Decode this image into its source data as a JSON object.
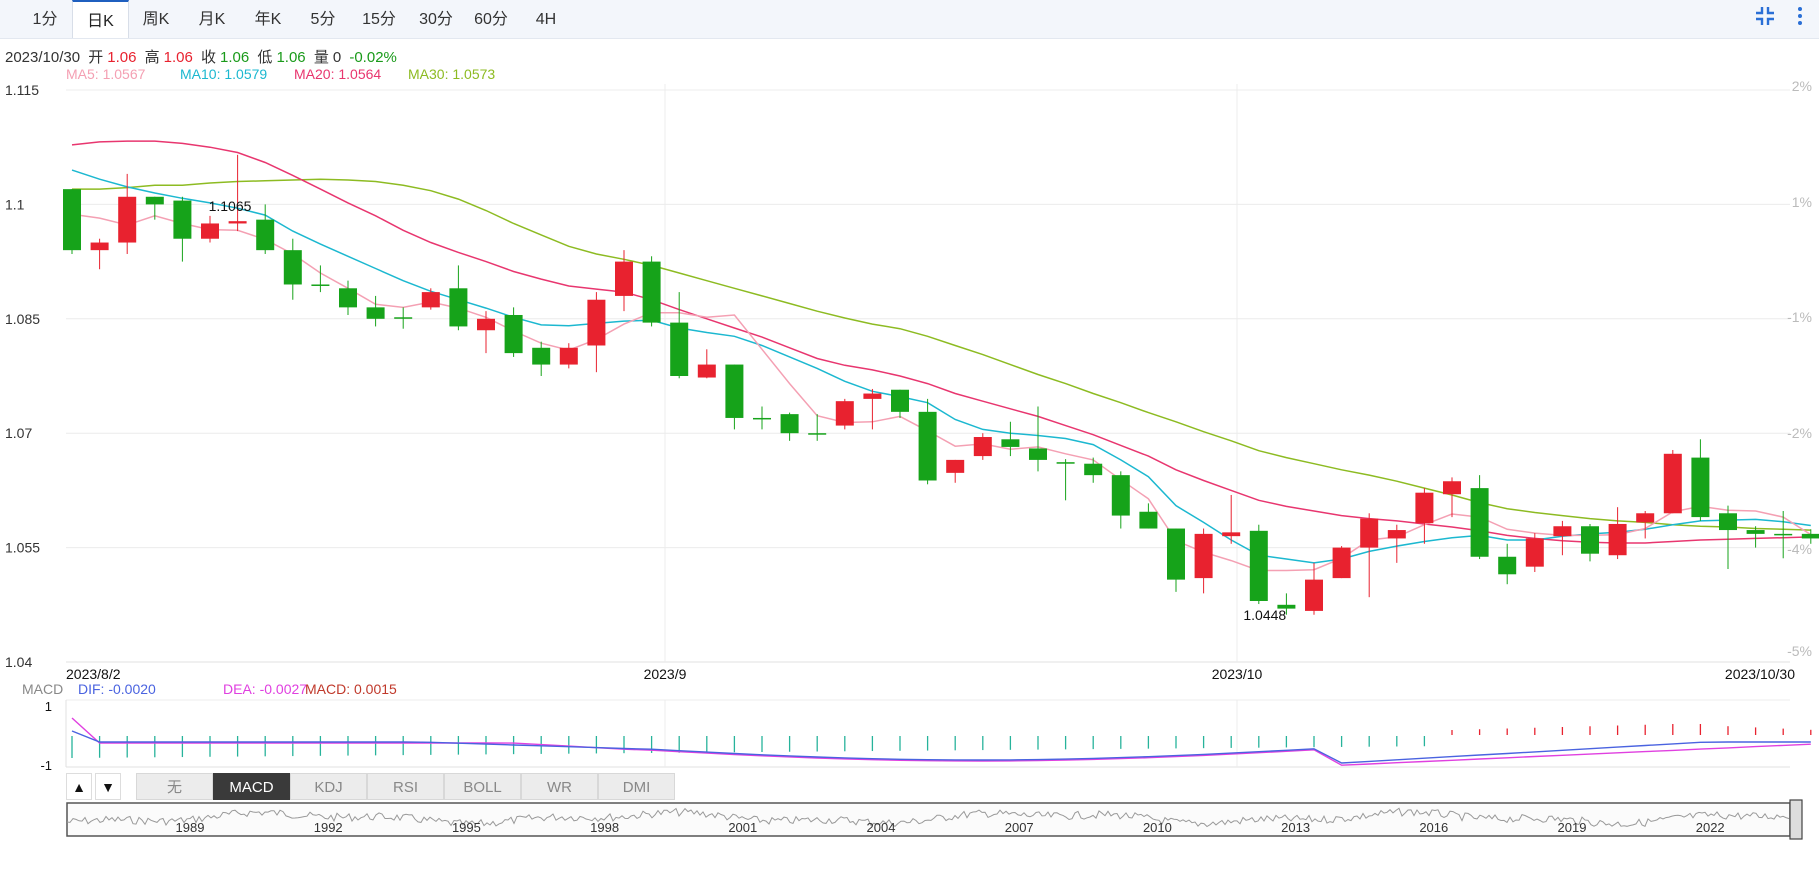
{
  "tabs": [
    "1分",
    "日K",
    "周K",
    "月K",
    "年K",
    "5分",
    "15分",
    "30分",
    "60分",
    "4H"
  ],
  "active_tab": "日K",
  "info": {
    "date": "2023/10/30",
    "open_label": "开",
    "open": "1.06",
    "high_label": "高",
    "high": "1.06",
    "close_label": "收",
    "close": "1.06",
    "low_label": "低",
    "low": "1.06",
    "vol_label": "量",
    "vol": "0",
    "change": "-0.02%"
  },
  "ma_legend": [
    {
      "text": "MA5: 1.0567",
      "color": "#f4a0b3"
    },
    {
      "text": "MA10: 1.0579",
      "color": "#1cb8d0"
    },
    {
      "text": "MA20: 1.0564",
      "color": "#e8366f"
    },
    {
      "text": "MA30: 1.0573",
      "color": "#8dbb22"
    }
  ],
  "chart_data": {
    "type": "candlestick",
    "y_ticks": [
      "1.115",
      "1.1",
      "1.085",
      "1.07",
      "1.055",
      "1.04"
    ],
    "y_right_ticks": [
      "2%",
      "1%",
      "-1%",
      "-2%",
      "-4%",
      "-5%"
    ],
    "ylim": [
      1.04,
      1.115
    ],
    "x_ticks": [
      "2023/8/2",
      "2023/9",
      "2023/10",
      "2023/10/30"
    ],
    "annotations": [
      {
        "text": "1.1065",
        "candle": 5
      },
      {
        "text": "1.0448",
        "candle": 43
      }
    ],
    "candles": [
      [
        1.102,
        1.094,
        1.102,
        1.0935
      ],
      [
        1.094,
        1.095,
        1.0955,
        1.0915
      ],
      [
        1.095,
        1.101,
        1.104,
        1.0935
      ],
      [
        1.101,
        1.1,
        1.101,
        1.098
      ],
      [
        1.1005,
        1.0955,
        1.101,
        1.0925
      ],
      [
        1.0955,
        1.0975,
        1.0985,
        1.095
      ],
      [
        1.0975,
        1.0978,
        1.1065,
        1.0965
      ],
      [
        1.098,
        1.094,
        1.1,
        1.0935
      ],
      [
        1.094,
        1.0895,
        1.0955,
        1.0875
      ],
      [
        1.0895,
        1.0895,
        1.092,
        1.0885
      ],
      [
        1.089,
        1.0865,
        1.09,
        1.0855
      ],
      [
        1.0865,
        1.085,
        1.088,
        1.084
      ],
      [
        1.0852,
        1.0852,
        1.0865,
        1.0837
      ],
      [
        1.0865,
        1.0885,
        1.089,
        1.0862
      ],
      [
        1.089,
        1.084,
        1.092,
        1.0835
      ],
      [
        1.0835,
        1.085,
        1.086,
        1.0805
      ],
      [
        1.0855,
        1.0805,
        1.0865,
        1.08
      ],
      [
        1.0812,
        1.079,
        1.082,
        1.0775
      ],
      [
        1.079,
        1.0812,
        1.0818,
        1.0785
      ],
      [
        1.0815,
        1.0875,
        1.0885,
        1.078
      ],
      [
        1.088,
        1.0925,
        1.094,
        1.086
      ],
      [
        1.0925,
        1.0845,
        1.0932,
        1.084
      ],
      [
        1.0845,
        1.0775,
        1.0885,
        1.0772
      ],
      [
        1.0773,
        1.079,
        1.081,
        1.0772
      ],
      [
        1.079,
        1.072,
        1.079,
        1.0705
      ],
      [
        1.072,
        1.072,
        1.0735,
        1.0705
      ],
      [
        1.0725,
        1.07,
        1.0727,
        1.069
      ],
      [
        1.07,
        1.07,
        1.0725,
        1.069
      ],
      [
        1.071,
        1.0742,
        1.0745,
        1.0705
      ],
      [
        1.0745,
        1.0752,
        1.0758,
        1.0705
      ],
      [
        1.0757,
        1.0728,
        1.0757,
        1.072
      ],
      [
        1.0728,
        1.0638,
        1.0745,
        1.0633
      ],
      [
        1.0648,
        1.0665,
        1.0665,
        1.0635
      ],
      [
        1.067,
        1.0695,
        1.07,
        1.0665
      ],
      [
        1.0692,
        1.0682,
        1.0715,
        1.067
      ],
      [
        1.068,
        1.0665,
        1.0735,
        1.065
      ],
      [
        1.0662,
        1.066,
        1.0666,
        1.0612
      ],
      [
        1.066,
        1.0645,
        1.0668,
        1.0635
      ],
      [
        1.0645,
        1.0592,
        1.065,
        1.0575
      ],
      [
        1.0597,
        1.0575,
        1.0608,
        1.0575
      ],
      [
        1.0575,
        1.0508,
        1.0575,
        1.0492
      ],
      [
        1.051,
        1.0568,
        1.0575,
        1.049
      ],
      [
        1.0565,
        1.057,
        1.0619,
        1.0555
      ],
      [
        1.0572,
        1.048,
        1.058,
        1.0476
      ],
      [
        1.0475,
        1.047,
        1.049,
        1.0462
      ],
      [
        1.0467,
        1.0508,
        1.053,
        1.0462
      ],
      [
        1.051,
        1.055,
        1.0552,
        1.051
      ],
      [
        1.055,
        1.0588,
        1.0595,
        1.0485
      ],
      [
        1.0562,
        1.0573,
        1.058,
        1.053
      ],
      [
        1.0582,
        1.0622,
        1.0628,
        1.0555
      ],
      [
        1.062,
        1.0637,
        1.0642,
        1.059
      ],
      [
        1.0628,
        1.0538,
        1.0645,
        1.0535
      ],
      [
        1.0538,
        1.0515,
        1.0555,
        1.0502
      ],
      [
        1.0525,
        1.0562,
        1.0569,
        1.0518
      ],
      [
        1.0565,
        1.0578,
        1.0585,
        1.054
      ],
      [
        1.0578,
        1.0542,
        1.0581,
        1.0532
      ],
      [
        1.054,
        1.0581,
        1.0603,
        1.0535
      ],
      [
        1.0583,
        1.0595,
        1.0598,
        1.0562
      ],
      [
        1.0595,
        1.0673,
        1.0678,
        1.0595
      ],
      [
        1.0668,
        1.059,
        1.0692,
        1.0585
      ],
      [
        1.0595,
        1.0573,
        1.0605,
        1.0522
      ],
      [
        1.0573,
        1.0568,
        1.0578,
        1.055
      ],
      [
        1.0568,
        1.0568,
        1.0598,
        1.0536
      ],
      [
        1.0568,
        1.0562,
        1.0574,
        1.0555
      ]
    ],
    "ma": {
      "MA5": [
        1.0987,
        1.0982,
        1.0973,
        1.0985,
        1.0975,
        1.0967,
        1.0966,
        1.0954,
        1.0935,
        1.091,
        1.089,
        1.0869,
        1.0865,
        1.0872,
        1.0864,
        1.0852,
        1.0834,
        1.0818,
        1.0809,
        1.0823,
        1.0843,
        1.0858,
        1.0858,
        1.0852,
        1.0855,
        1.081,
        1.0765,
        1.0723,
        1.0714,
        1.0715,
        1.0722,
        1.0703,
        1.0683,
        1.0686,
        1.0679,
        1.0682,
        1.0673,
        1.0665,
        1.0639,
        1.0614,
        1.0559,
        1.0544,
        1.0533,
        1.052,
        1.052,
        1.0521,
        1.0536,
        1.056,
        1.0564,
        1.058,
        1.0594,
        1.059,
        1.0574,
        1.0569,
        1.0566,
        1.0566,
        1.0567,
        1.0575,
        1.0597,
        1.0604,
        1.0599,
        1.0598,
        1.059,
        1.0567
      ],
      "MA10": [
        1.1045,
        1.1033,
        1.1023,
        1.1015,
        1.1008,
        1.1002,
        1.0995,
        1.0986,
        1.0965,
        1.0948,
        1.0932,
        1.0916,
        1.09,
        1.0886,
        1.0875,
        1.0864,
        1.0852,
        1.0842,
        1.0841,
        1.0844,
        1.0847,
        1.0848,
        1.0838,
        1.0832,
        1.0827,
        1.0815,
        1.08,
        1.0785,
        1.0768,
        1.0755,
        1.0748,
        1.074,
        1.0718,
        1.0705,
        1.07,
        1.0697,
        1.0693,
        1.0685,
        1.0665,
        1.0643,
        1.0605,
        1.0583,
        1.056,
        1.054,
        1.0535,
        1.053,
        1.0535,
        1.0545,
        1.0552,
        1.0558,
        1.0563,
        1.0566,
        1.056,
        1.056,
        1.0565,
        1.0568,
        1.057,
        1.0574,
        1.058,
        1.0585,
        1.0586,
        1.0587,
        1.0584,
        1.0579
      ],
      "MA20": [
        1.1078,
        1.1082,
        1.1083,
        1.1083,
        1.108,
        1.1075,
        1.1068,
        1.1055,
        1.1038,
        1.102,
        1.1002,
        1.0985,
        1.0966,
        1.095,
        1.0937,
        1.0925,
        1.0912,
        1.0902,
        1.0893,
        1.0889,
        1.0885,
        1.0875,
        1.0862,
        1.085,
        1.0838,
        1.0826,
        1.0812,
        1.0798,
        1.0789,
        1.0783,
        1.0775,
        1.0765,
        1.0752,
        1.0742,
        1.0732,
        1.0722,
        1.071,
        1.0698,
        1.0684,
        1.067,
        1.0652,
        1.0638,
        1.0625,
        1.0612,
        1.0604,
        1.0598,
        1.0592,
        1.0588,
        1.0585,
        1.0581,
        1.0577,
        1.0572,
        1.0566,
        1.0562,
        1.0559,
        1.0557,
        1.0556,
        1.0556,
        1.0558,
        1.056,
        1.0561,
        1.0562,
        1.0563,
        1.0564
      ],
      "MA30": [
        1.102,
        1.102,
        1.1022,
        1.1025,
        1.1025,
        1.1028,
        1.103,
        1.1031,
        1.1032,
        1.1033,
        1.1032,
        1.103,
        1.1025,
        1.1018,
        1.1007,
        1.0992,
        1.0975,
        1.096,
        1.0945,
        1.0935,
        1.0928,
        1.092,
        1.091,
        1.09,
        1.089,
        1.088,
        1.087,
        1.086,
        1.0851,
        1.0843,
        1.0837,
        1.0827,
        1.0815,
        1.0803,
        1.079,
        1.0777,
        1.0765,
        1.0752,
        1.074,
        1.0727,
        1.0715,
        1.0702,
        1.069,
        1.0677,
        1.0668,
        1.066,
        1.0652,
        1.0645,
        1.0637,
        1.0628,
        1.0619,
        1.0609,
        1.0601,
        1.0596,
        1.0592,
        1.0588,
        1.0585,
        1.0583,
        1.058,
        1.0578,
        1.0577,
        1.0575,
        1.0574,
        1.0573
      ]
    },
    "macd_panel": {
      "labels": {
        "name": "MACD",
        "dif": "DIF: -0.0020",
        "dea": "DEA: -0.0027",
        "macd": "MACD: 0.0015"
      },
      "y_ticks": [
        "1",
        "-1"
      ],
      "ylim": [
        -1.2,
        1.2
      ]
    }
  },
  "indicator_tabs": [
    "无",
    "MACD",
    "KDJ",
    "RSI",
    "BOLL",
    "WR",
    "DMI"
  ],
  "indicator_active": "MACD",
  "indicator_arrows": [
    "▲",
    "▼"
  ],
  "overview_years": [
    "1989",
    "1992",
    "1995",
    "1998",
    "2001",
    "2004",
    "2007",
    "2010",
    "2013",
    "2016",
    "2019",
    "2022"
  ],
  "colors": {
    "up": "#e8222f",
    "down": "#16a31a",
    "dif": "#4a63e0",
    "dea": "#e040e0",
    "hist": "#27b39b"
  }
}
